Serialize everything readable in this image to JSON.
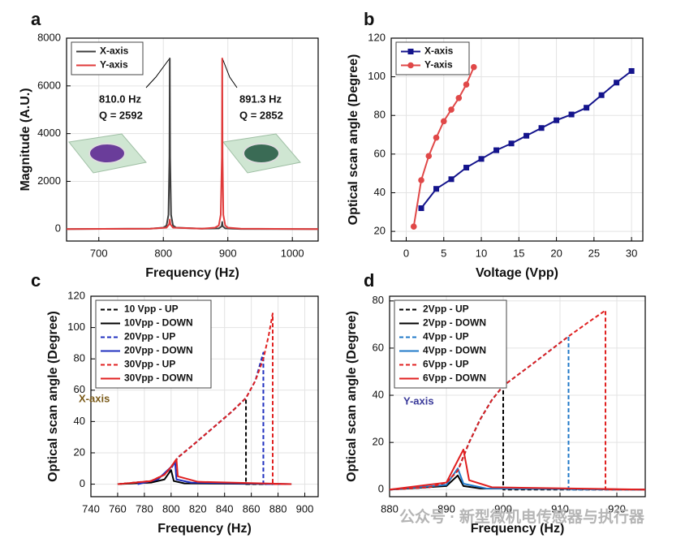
{
  "chart_data": [
    {
      "type": "line",
      "label": "a",
      "xlabel": "Frequency (Hz)",
      "ylabel": "Magnitude (A.U.)",
      "xlim": [
        650,
        1040
      ],
      "ylim": [
        -500,
        8000
      ],
      "xticks": [
        700,
        800,
        900,
        1000
      ],
      "yticks": [
        0,
        2000,
        4000,
        6000,
        8000
      ],
      "grid": true,
      "legend": "upper left",
      "annotations": [
        {
          "text": "810.0 Hz"
        },
        {
          "text": "Q = 2592"
        },
        {
          "text": "891.3 Hz"
        },
        {
          "text": "Q = 2852"
        }
      ],
      "series": [
        {
          "name": "X-axis",
          "color": "#3d3d3d",
          "line_style": "solid",
          "x": [
            650,
            780,
            800,
            805,
            808,
            809.5,
            810,
            810.5,
            812,
            815,
            820,
            860,
            886,
            890.5,
            891.3,
            892,
            896,
            920,
            1040
          ],
          "values": [
            0,
            20,
            60,
            150,
            600,
            3000,
            7150,
            3000,
            600,
            150,
            60,
            20,
            30,
            120,
            300,
            120,
            30,
            5,
            0
          ]
        },
        {
          "name": "Y-axis",
          "color": "#e03a3a",
          "line_style": "solid",
          "x": [
            650,
            780,
            805,
            809,
            810,
            811,
            815,
            860,
            880,
            886,
            889,
            890.8,
            891.3,
            891.8,
            893,
            896,
            900,
            920,
            1040
          ],
          "values": [
            0,
            20,
            60,
            200,
            400,
            200,
            60,
            20,
            60,
            150,
            600,
            3000,
            7150,
            3000,
            600,
            150,
            60,
            20,
            0
          ]
        }
      ]
    },
    {
      "type": "line",
      "label": "b",
      "xlabel": "Voltage (Vpp)",
      "ylabel": "Optical scan angle (Degree)",
      "xlim": [
        -2,
        31.5
      ],
      "ylim": [
        15,
        120
      ],
      "xticks": [
        0,
        5,
        10,
        15,
        20,
        25,
        30
      ],
      "yticks": [
        20,
        40,
        60,
        80,
        100,
        120
      ],
      "grid": true,
      "legend": "upper left",
      "series": [
        {
          "name": "X-axis",
          "color": "#14148c",
          "line_style": "solid",
          "marker": "square",
          "x": [
            2,
            4,
            6,
            8,
            10,
            12,
            14,
            16,
            18,
            20,
            22,
            24,
            26,
            28,
            30
          ],
          "values": [
            32,
            42,
            47,
            53,
            57.5,
            62,
            65.5,
            69.5,
            73.5,
            77.5,
            80.5,
            84,
            90.5,
            97,
            103
          ]
        },
        {
          "name": "Y-axis",
          "color": "#e04848",
          "line_style": "solid",
          "marker": "circle",
          "x": [
            1,
            2,
            3,
            4,
            5,
            6,
            7,
            8,
            9
          ],
          "values": [
            22.5,
            46.5,
            59,
            68.5,
            77,
            83,
            89,
            96,
            105
          ]
        }
      ]
    },
    {
      "type": "line",
      "label": "c",
      "xlabel": "Frequency (Hz)",
      "ylabel": "Optical scan angle (Degree)",
      "xlim": [
        740,
        910
      ],
      "ylim": [
        -8,
        120
      ],
      "xticks": [
        740,
        760,
        780,
        800,
        820,
        840,
        860,
        880,
        900
      ],
      "yticks": [
        0,
        20,
        40,
        60,
        80,
        100,
        120
      ],
      "grid": true,
      "legend": "upper left",
      "annotations": [
        {
          "text": "X-axis",
          "color": "#7a5a18"
        }
      ],
      "series": [
        {
          "name": "10 Vpp - UP",
          "color": "#000000",
          "line_style": "dashed",
          "x": [
            760,
            785,
            795,
            800,
            805,
            815,
            830,
            845,
            856,
            856,
            890
          ],
          "values": [
            0,
            2,
            6,
            11,
            17,
            24,
            35,
            46,
            55,
            0,
            0
          ]
        },
        {
          "name": "10Vpp - DOWN",
          "color": "#000000",
          "line_style": "solid",
          "x": [
            760,
            785,
            795,
            800,
            802,
            810,
            890
          ],
          "values": [
            0,
            1,
            3,
            9,
            2,
            0.5,
            0
          ]
        },
        {
          "name": "20Vpp - UP",
          "color": "#1f2fbf",
          "line_style": "dashed",
          "x": [
            775,
            790,
            800,
            805,
            815,
            830,
            845,
            856,
            863,
            869,
            869,
            890
          ],
          "values": [
            0,
            3,
            10,
            17,
            24,
            35,
            46,
            55,
            66,
            84,
            0,
            0
          ]
        },
        {
          "name": "20Vpp - DOWN",
          "color": "#1f2fbf",
          "line_style": "solid",
          "x": [
            775,
            790,
            800,
            803,
            804,
            815,
            890
          ],
          "values": [
            0,
            3,
            11,
            14,
            3,
            1,
            0
          ]
        },
        {
          "name": "30Vpp - UP",
          "color": "#e02020",
          "line_style": "dashed",
          "x": [
            760,
            785,
            795,
            800,
            805,
            815,
            830,
            845,
            856,
            863,
            869,
            873,
            876,
            876,
            890
          ],
          "values": [
            0,
            2,
            6,
            11,
            17,
            24,
            35,
            46,
            55,
            66,
            80,
            95,
            109,
            0,
            0
          ]
        },
        {
          "name": "30Vpp - DOWN",
          "color": "#e02020",
          "line_style": "solid",
          "x": [
            760,
            785,
            795,
            800,
            804,
            805,
            820,
            890
          ],
          "values": [
            0,
            2,
            6,
            11,
            16,
            5,
            1.5,
            0
          ]
        }
      ]
    },
    {
      "type": "line",
      "label": "d",
      "xlabel": "Frequency (Hz)",
      "ylabel": "Optical scan angle (Degree)",
      "xlim": [
        880,
        925
      ],
      "ylim": [
        -3,
        82
      ],
      "xticks": [
        880,
        890,
        900,
        910,
        920
      ],
      "yticks": [
        0,
        20,
        40,
        60,
        80
      ],
      "grid": true,
      "legend": "upper left",
      "annotations": [
        {
          "text": "Y-axis",
          "color": "#3a3a9a"
        }
      ],
      "watermark": "公众号 · 新型微机电传感器与执行器",
      "series": [
        {
          "name": "2Vpp - UP",
          "color": "#000000",
          "line_style": "dashed",
          "x": [
            880,
            887,
            890,
            892,
            894,
            896,
            898,
            900,
            900,
            925
          ],
          "values": [
            0,
            1,
            3,
            8,
            20,
            30,
            38,
            44,
            0,
            0
          ]
        },
        {
          "name": "2Vpp - DOWN",
          "color": "#000000",
          "line_style": "solid",
          "x": [
            880,
            890,
            892,
            893,
            896,
            925
          ],
          "values": [
            0,
            1.5,
            6,
            1.5,
            0.5,
            0
          ]
        },
        {
          "name": "4Vpp - UP",
          "color": "#1f78c8",
          "line_style": "dashed",
          "x": [
            880,
            887,
            890,
            892,
            894,
            896,
            898,
            900,
            905,
            911.5,
            911.5,
            925
          ],
          "values": [
            0,
            1,
            3,
            8,
            20,
            30,
            38,
            44,
            53,
            65,
            0,
            0
          ]
        },
        {
          "name": "4Vpp - DOWN",
          "color": "#1f78c8",
          "line_style": "solid",
          "x": [
            880,
            890,
            892,
            893,
            897,
            925
          ],
          "values": [
            0,
            2,
            9,
            2.5,
            0.5,
            0
          ]
        },
        {
          "name": "6Vpp - UP",
          "color": "#e02020",
          "line_style": "dashed",
          "x": [
            880,
            887,
            890,
            892,
            894,
            896,
            898,
            900,
            905,
            911.5,
            915,
            918,
            918,
            925
          ],
          "values": [
            0,
            1,
            3,
            8,
            20,
            30,
            38,
            44,
            53,
            65,
            71,
            76,
            0,
            0
          ]
        },
        {
          "name": "6Vpp - DOWN",
          "color": "#e02020",
          "line_style": "solid",
          "x": [
            880,
            890,
            893,
            894,
            898,
            925
          ],
          "values": [
            0,
            3,
            17,
            4,
            1,
            0
          ]
        }
      ]
    }
  ]
}
